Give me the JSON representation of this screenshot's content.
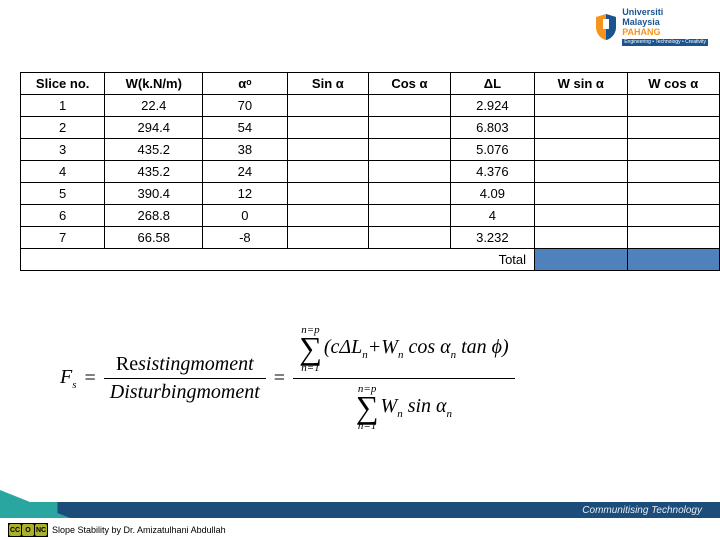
{
  "logo": {
    "line1": "Universiti",
    "line2": "Malaysia",
    "line3": "PAHANG",
    "tagline": "Engineering • Technology • Creativity",
    "shield_blue": "#1a5490",
    "shield_gold": "#f7941e"
  },
  "table": {
    "headers": {
      "slice": "Slice no.",
      "w": "W(k.N/m)",
      "alpha": "αᵒ",
      "sin": "Sin α",
      "cos": "Cos α",
      "dl": "ΔL",
      "wsin": "W sin α",
      "wcos": "W cos α"
    },
    "rows": [
      {
        "n": "1",
        "w": "22.4",
        "a": "70",
        "sin": "",
        "cos": "",
        "dl": "2.924",
        "ws": "",
        "wc": ""
      },
      {
        "n": "2",
        "w": "294.4",
        "a": "54",
        "sin": "",
        "cos": "",
        "dl": "6.803",
        "ws": "",
        "wc": ""
      },
      {
        "n": "3",
        "w": "435.2",
        "a": "38",
        "sin": "",
        "cos": "",
        "dl": "5.076",
        "ws": "",
        "wc": ""
      },
      {
        "n": "4",
        "w": "435.2",
        "a": "24",
        "sin": "",
        "cos": "",
        "dl": "4.376",
        "ws": "",
        "wc": ""
      },
      {
        "n": "5",
        "w": "390.4",
        "a": "12",
        "sin": "",
        "cos": "",
        "dl": "4.09",
        "ws": "",
        "wc": ""
      },
      {
        "n": "6",
        "w": "268.8",
        "a": "0",
        "sin": "",
        "cos": "",
        "dl": "4",
        "ws": "",
        "wc": ""
      },
      {
        "n": "7",
        "w": "66.58",
        "a": "-8",
        "sin": "",
        "cos": "",
        "dl": "3.232",
        "ws": "",
        "wc": ""
      }
    ],
    "total_label": "Total",
    "highlight_color": "#4f81bd"
  },
  "formula": {
    "fs": "F",
    "fs_sub": "s",
    "eq": "=",
    "resist_label": "Re",
    "resist_rest": "sistingmoment",
    "disturb_label": "Disturbingmoment",
    "sum_top": "n=p",
    "sum_bot": "n=1",
    "num_term": "(cΔL",
    "num_sub_n": "n",
    "num_plus": "+W",
    "num_cos": " cos α",
    "num_tan": " tan ϕ)",
    "den_W": "W",
    "den_sin": " sin α"
  },
  "footer": {
    "ct_label": "Communitising Technology",
    "attribution": "Slope Stability by Dr. Amizatulhani Abdullah",
    "cc": [
      "CC",
      "O",
      "NC"
    ]
  }
}
